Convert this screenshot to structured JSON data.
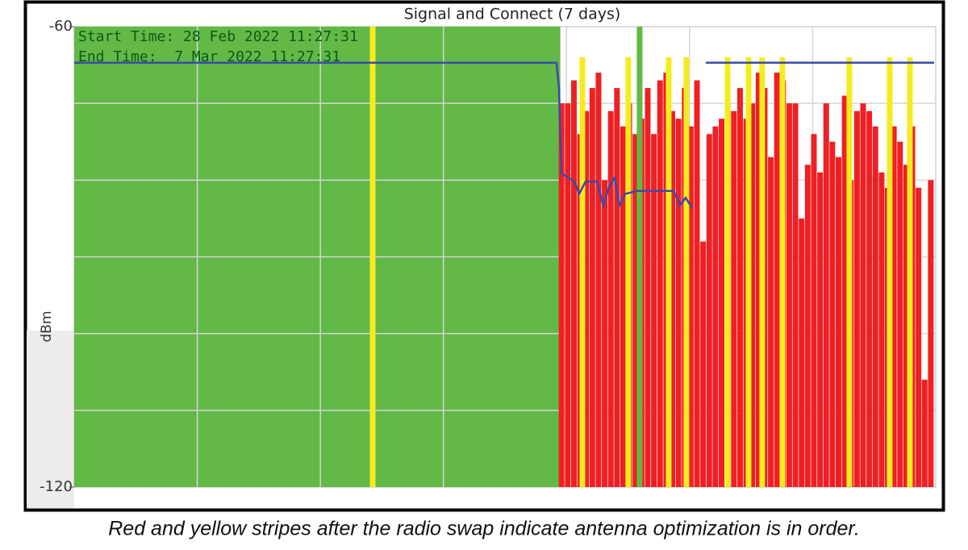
{
  "chart_data": {
    "type": "bar",
    "title": "Signal and Connect (7 days)",
    "y_label": "dBm",
    "annotations": [
      "Start Time: 28 Feb 2022 11:27:31",
      "End Time:  7 Mar 2022 11:27:31"
    ],
    "xlim": [
      0,
      7
    ],
    "xgrid": [
      1,
      2,
      3,
      4,
      5,
      6
    ],
    "ylim": [
      -120,
      -60
    ],
    "yticks": [
      -60,
      -120
    ],
    "ygrid": [
      -70,
      -80,
      -90,
      -100,
      -110
    ],
    "grid": true,
    "series": [
      {
        "kind": "area",
        "color": "#62b946",
        "x": [
          0,
          3.95
        ],
        "values": [
          -60,
          -60
        ]
      },
      {
        "kind": "bar",
        "color": "#ee2024",
        "x": [
          3.96,
          4.01,
          4.06,
          4.11,
          4.16,
          4.21,
          4.26,
          4.31,
          4.36,
          4.41,
          4.46,
          4.51,
          4.56,
          4.61,
          4.66,
          4.71,
          4.76,
          4.81,
          4.86,
          4.91,
          4.96,
          5.01,
          5.06,
          5.11,
          5.16,
          5.21,
          5.26,
          5.31,
          5.36,
          5.41,
          5.46,
          5.51,
          5.56,
          5.61,
          5.66,
          5.71,
          5.76,
          5.81,
          5.86,
          5.91,
          5.96,
          6.01,
          6.06,
          6.11,
          6.16,
          6.21,
          6.26,
          6.31,
          6.36,
          6.41,
          6.46,
          6.51,
          6.56,
          6.61,
          6.66,
          6.71,
          6.76,
          6.81,
          6.86,
          6.91,
          6.96
        ],
        "values": [
          -70,
          -70,
          -67,
          -74,
          -71,
          -68,
          -66,
          -80,
          -71,
          -68,
          -73,
          -70,
          -74,
          -72,
          -68,
          -74,
          -67,
          -66,
          -71,
          -72,
          -68,
          -73,
          -67,
          -88,
          -74,
          -73,
          -72,
          -70,
          -71,
          -68,
          -72,
          -70,
          -66,
          -68,
          -77,
          -66,
          -67,
          -70,
          -70,
          -85,
          -78,
          -74,
          -79,
          -70,
          -75,
          -77,
          -69,
          -80,
          -71,
          -70,
          -71,
          -73,
          -79,
          -81,
          -73,
          -75,
          -78,
          -73,
          -81,
          -106,
          -80
        ]
      },
      {
        "kind": "bar",
        "color": "#62b946",
        "x": [
          4.594
        ],
        "values": [
          -60
        ]
      },
      {
        "kind": "bar",
        "color": "#f5ec1f",
        "x": [
          2.425,
          4.129,
          4.502,
          4.83,
          4.974,
          5.309,
          5.479,
          5.59,
          5.754,
          6.298,
          6.626,
          6.79
        ],
        "values": [
          -60,
          -64,
          -64,
          -64,
          -64,
          -64,
          -64,
          -64,
          -64,
          -64,
          -64,
          -64
        ]
      },
      {
        "kind": "line",
        "color": "#3b4aa8",
        "x": [
          0,
          3.919,
          3.939,
          3.958,
          4.018,
          4.064,
          4.103,
          4.155,
          4.247,
          4.3,
          4.345,
          4.391,
          4.43,
          4.476,
          4.575,
          4.87,
          4.922,
          4.968,
          5.02,
          5.07,
          5.132,
          6.987
        ],
        "values": [
          -64.7,
          -64.7,
          -68.1,
          -79.1,
          -79.7,
          -80.2,
          -81.8,
          -80.2,
          -80.2,
          -83.3,
          -80.9,
          -79.7,
          -83.3,
          -81.8,
          -81.4,
          -81.4,
          -83.3,
          -82.3,
          -83.6,
          null,
          -64.7,
          -64.7
        ]
      }
    ]
  },
  "caption": "Red and yellow stripes after the radio swap indicate antenna optimization is in order."
}
